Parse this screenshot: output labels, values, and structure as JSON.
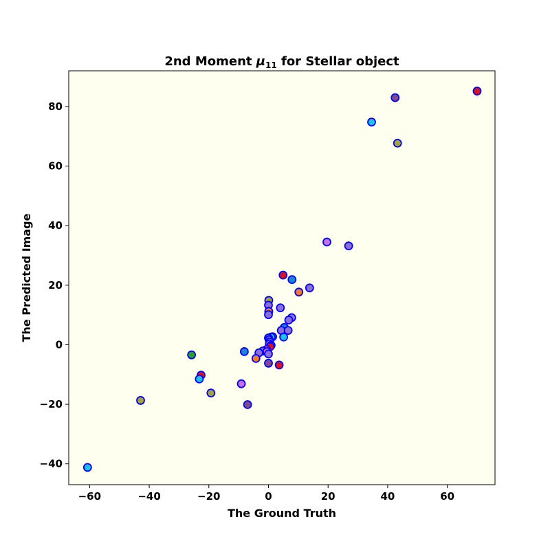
{
  "chart_data": {
    "type": "scatter",
    "title": "2nd Moment μ11 for Stellar object",
    "title_prefix": "2nd Moment ",
    "title_symbol": "μ",
    "title_subscript": "11",
    "title_suffix": " for Stellar object",
    "xlabel": "The Ground Truth",
    "ylabel": "The Predicted Image",
    "xlim": [
      -67,
      76
    ],
    "ylim": [
      -47,
      92
    ],
    "xticks": [
      -60,
      -40,
      -20,
      0,
      20,
      40,
      60
    ],
    "yticks": [
      -40,
      -20,
      0,
      20,
      40,
      60,
      80
    ],
    "xtick_labels": [
      "−60",
      "−40",
      "−20",
      "0",
      "20",
      "40",
      "60"
    ],
    "ytick_labels": [
      "−40",
      "−20",
      "0",
      "20",
      "40",
      "60",
      "80"
    ],
    "grid": false,
    "legend": "none",
    "plot_background": "#fffff0",
    "marker_edge_color": "#0000ff",
    "points": [
      {
        "x": 70.0,
        "y": 85.2,
        "color": "#d8141e"
      },
      {
        "x": 42.5,
        "y": 83.0,
        "color": "#7f4b8c"
      },
      {
        "x": 34.6,
        "y": 74.8,
        "color": "#1fc0f0"
      },
      {
        "x": 43.3,
        "y": 67.7,
        "color": "#a3a33f"
      },
      {
        "x": 19.6,
        "y": 34.5,
        "color": "#c36ff0"
      },
      {
        "x": 26.9,
        "y": 33.2,
        "color": "#8c6fdb"
      },
      {
        "x": 4.9,
        "y": 23.4,
        "color": "#d8141e"
      },
      {
        "x": 7.9,
        "y": 21.9,
        "color": "#1c86d6"
      },
      {
        "x": 13.8,
        "y": 19.1,
        "color": "#8c6fdb"
      },
      {
        "x": 10.2,
        "y": 17.7,
        "color": "#f07a2a"
      },
      {
        "x": 0.1,
        "y": 14.9,
        "color": "#a3a33f"
      },
      {
        "x": 0.0,
        "y": 13.3,
        "color": "#8c6fdb"
      },
      {
        "x": 4.0,
        "y": 12.4,
        "color": "#8c6fdb"
      },
      {
        "x": 0.1,
        "y": 11.2,
        "color": "#f07a2a"
      },
      {
        "x": 0.0,
        "y": 10.1,
        "color": "#8c6fdb"
      },
      {
        "x": 7.8,
        "y": 9.1,
        "color": "#8c6fdb"
      },
      {
        "x": 6.8,
        "y": 8.3,
        "color": "#8c6fdb"
      },
      {
        "x": 5.3,
        "y": 5.8,
        "color": "#1c86d6"
      },
      {
        "x": 4.3,
        "y": 4.8,
        "color": "#8c6fdb"
      },
      {
        "x": 6.6,
        "y": 4.8,
        "color": "#8c6fdb"
      },
      {
        "x": 5.1,
        "y": 2.6,
        "color": "#1fc0f0"
      },
      {
        "x": 1.4,
        "y": 2.7,
        "color": "#7f4b8c"
      },
      {
        "x": 0.9,
        "y": 2.6,
        "color": "#1fc0f0"
      },
      {
        "x": 0.0,
        "y": 2.3,
        "color": "#8c6fdb"
      },
      {
        "x": 0.2,
        "y": 1.7,
        "color": "#8c6fdb"
      },
      {
        "x": 0.4,
        "y": 1.0,
        "color": "#8c6fdb"
      },
      {
        "x": 0.3,
        "y": 0.3,
        "color": "#8c6fdb"
      },
      {
        "x": 0.9,
        "y": -0.2,
        "color": "#8c6fdb"
      },
      {
        "x": 0.6,
        "y": -0.6,
        "color": "#d8141e"
      },
      {
        "x": -0.7,
        "y": -1.6,
        "color": "#c36ff0"
      },
      {
        "x": -1.9,
        "y": -2.1,
        "color": "#8c6fdb"
      },
      {
        "x": -0.5,
        "y": -2.3,
        "color": "#c36ff0"
      },
      {
        "x": -3.2,
        "y": -2.7,
        "color": "#8c6fdb"
      },
      {
        "x": 0.0,
        "y": -3.1,
        "color": "#8c6fdb"
      },
      {
        "x": -8.1,
        "y": -2.3,
        "color": "#1c86d6"
      },
      {
        "x": -4.2,
        "y": -4.6,
        "color": "#f07a2a"
      },
      {
        "x": 0.0,
        "y": -6.2,
        "color": "#7f4b8c"
      },
      {
        "x": 3.6,
        "y": -6.8,
        "color": "#d8141e"
      },
      {
        "x": -25.8,
        "y": -3.4,
        "color": "#2ca02c"
      },
      {
        "x": -22.6,
        "y": -10.2,
        "color": "#d8141e"
      },
      {
        "x": -23.2,
        "y": -11.5,
        "color": "#1fc0f0"
      },
      {
        "x": -9.1,
        "y": -13.1,
        "color": "#c36ff0"
      },
      {
        "x": -19.3,
        "y": -16.2,
        "color": "#a3a33f"
      },
      {
        "x": -7.0,
        "y": -20.1,
        "color": "#7f4b8c"
      },
      {
        "x": -42.9,
        "y": -18.7,
        "color": "#a3a33f"
      },
      {
        "x": -60.7,
        "y": -41.2,
        "color": "#1fc0f0"
      }
    ]
  }
}
